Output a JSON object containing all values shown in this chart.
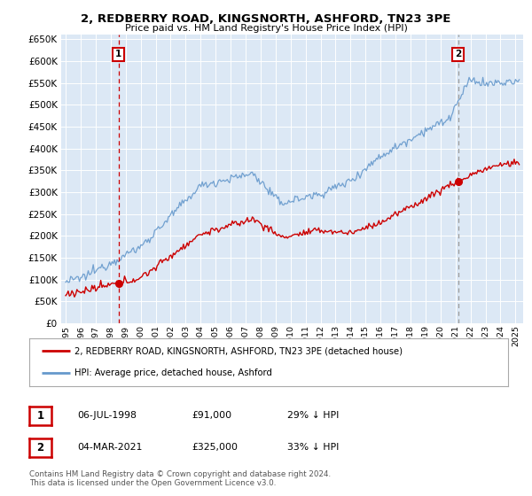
{
  "title": "2, REDBERRY ROAD, KINGSNORTH, ASHFORD, TN23 3PE",
  "subtitle": "Price paid vs. HM Land Registry's House Price Index (HPI)",
  "ylim": [
    0,
    660000
  ],
  "yticks": [
    0,
    50000,
    100000,
    150000,
    200000,
    250000,
    300000,
    350000,
    400000,
    450000,
    500000,
    550000,
    600000,
    650000
  ],
  "sale1_date_x": 1998.52,
  "sale1_price": 91000,
  "sale2_date_x": 2021.17,
  "sale2_price": 325000,
  "red_color": "#cc0000",
  "blue_color": "#6699cc",
  "vline1_color": "#cc0000",
  "vline2_color": "#999999",
  "plot_bg": "#dce8f5",
  "legend_entry1": "2, REDBERRY ROAD, KINGSNORTH, ASHFORD, TN23 3PE (detached house)",
  "legend_entry2": "HPI: Average price, detached house, Ashford",
  "table_row1": [
    "1",
    "06-JUL-1998",
    "£91,000",
    "29% ↓ HPI"
  ],
  "table_row2": [
    "2",
    "04-MAR-2021",
    "£325,000",
    "33% ↓ HPI"
  ],
  "footnote": "Contains HM Land Registry data © Crown copyright and database right 2024.\nThis data is licensed under the Open Government Licence v3.0.",
  "xlim_start": 1994.7,
  "xlim_end": 2025.5
}
